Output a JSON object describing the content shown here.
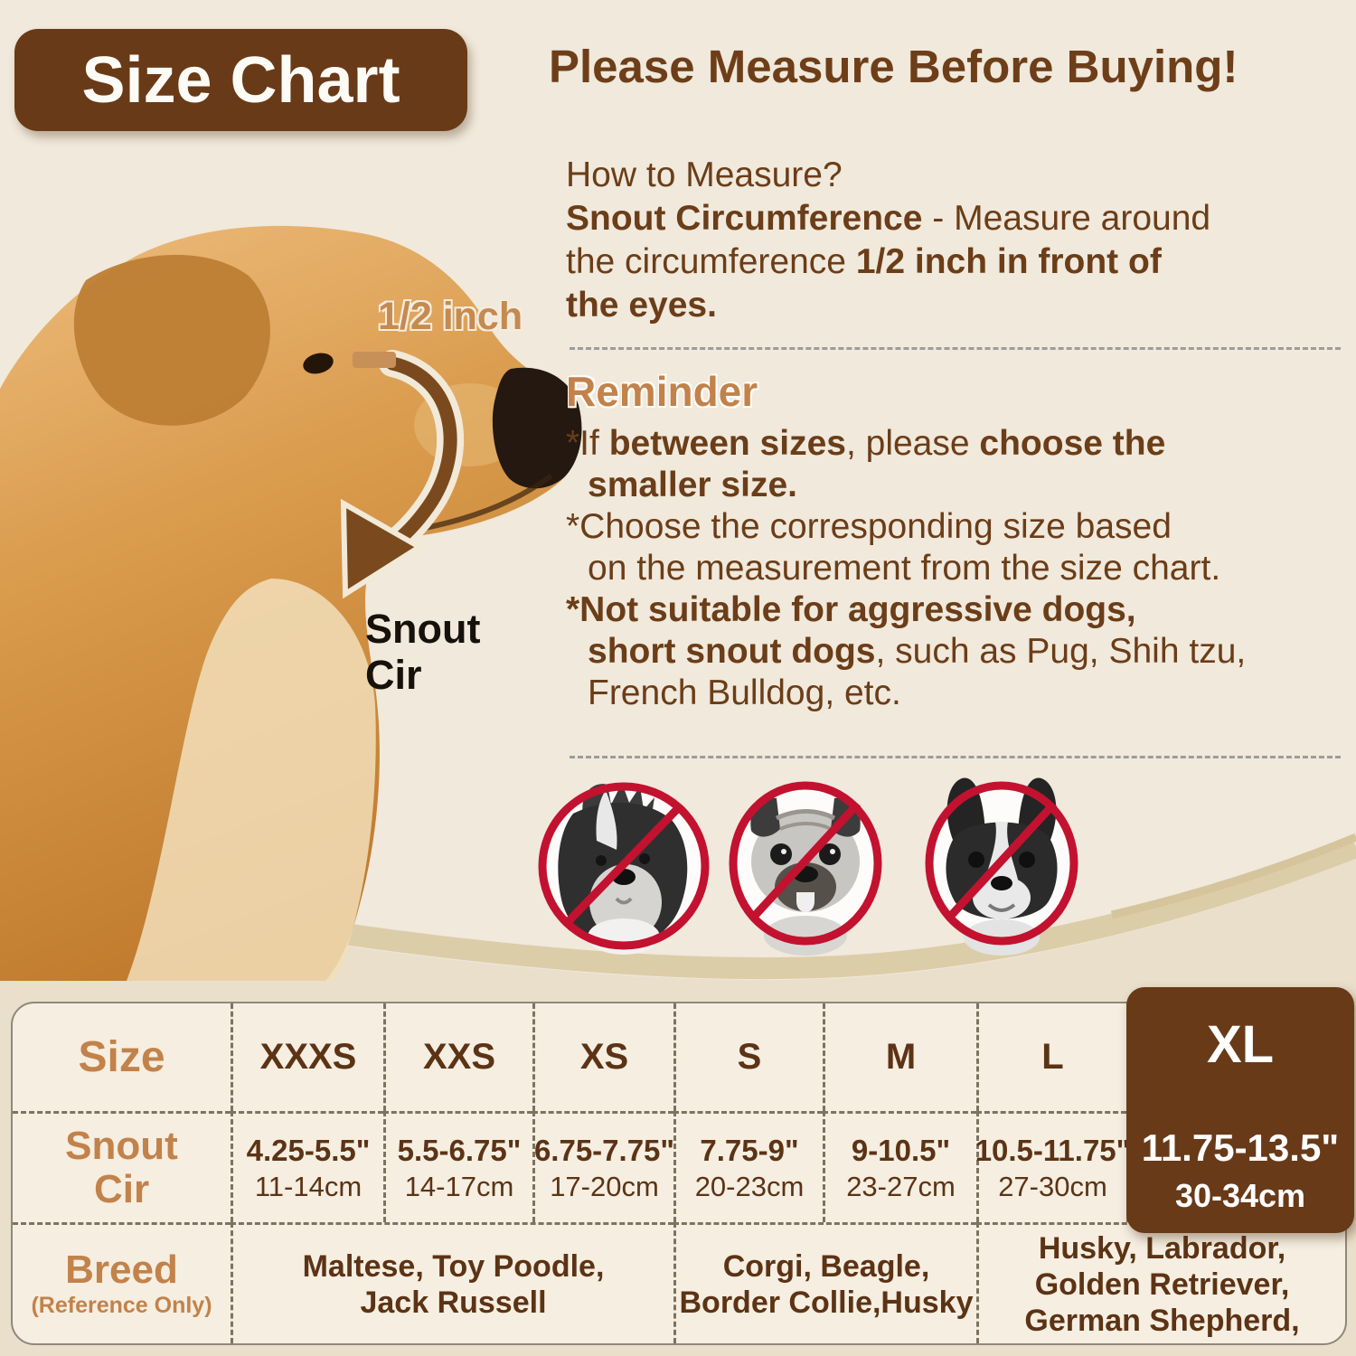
{
  "page": {
    "badge": "Size Chart",
    "title": "Please Measure Before Buying!"
  },
  "colors": {
    "dark_brown": "#693A17",
    "text_brown": "#6B3D18",
    "accent_tan": "#C2824A",
    "prohibit_red": "#C2122F",
    "table_bg": "#F5EEE1",
    "swoosh_band": "#DCCDA9"
  },
  "dog_figure": {
    "half_inch_label": "1/2 inch",
    "snout_cir_lines": [
      "Snout",
      "Cir"
    ],
    "icons": [
      "golden-retriever-photo",
      "measure-arrow-icon"
    ]
  },
  "how_to": {
    "heading": "How to Measure?",
    "lines": [
      {
        "segs": [
          [
            "Snout Circumference",
            1
          ],
          [
            " - Measure around",
            0
          ]
        ]
      },
      {
        "segs": [
          [
            "the circumference ",
            0
          ],
          [
            "1/2 inch in front of",
            1
          ]
        ]
      },
      {
        "segs": [
          [
            "the eyes.",
            1
          ]
        ]
      }
    ]
  },
  "reminder": {
    "heading": "Reminder",
    "lines": [
      {
        "segs": [
          [
            "*If ",
            0
          ],
          [
            "between sizes",
            1
          ],
          [
            ", please ",
            0
          ],
          [
            "choose the",
            1
          ]
        ]
      },
      {
        "indent": 1,
        "segs": [
          [
            "smaller size.",
            1
          ]
        ]
      },
      {
        "segs": [
          [
            "*Choose the corresponding size based",
            0
          ]
        ]
      },
      {
        "indent": 1,
        "segs": [
          [
            "on the measurement from the size chart.",
            0
          ]
        ]
      },
      {
        "segs": [
          [
            "*Not suitable for aggressive dogs,",
            1
          ]
        ]
      },
      {
        "indent": 1,
        "segs": [
          [
            "short snout dogs",
            1
          ],
          [
            ", such as Pug, Shih tzu,",
            0
          ]
        ]
      },
      {
        "indent": 1,
        "segs": [
          [
            "French Bulldog, etc.",
            0
          ]
        ]
      }
    ]
  },
  "prohibited": {
    "icons": [
      "no-shih-tzu-icon",
      "no-pug-icon",
      "no-french-bulldog-icon"
    ]
  },
  "size_table": {
    "row_labels": {
      "size": "Size",
      "snout_lines": [
        "Snout",
        "Cir"
      ],
      "breed": "Breed",
      "breed_sub": "(Reference Only)"
    },
    "columns": [
      {
        "label": "XXXS",
        "inch": "4.25-5.5\"",
        "cm": "11-14cm"
      },
      {
        "label": "XXS",
        "inch": "5.5-6.75\"",
        "cm": "14-17cm"
      },
      {
        "label": "XS",
        "inch": "6.75-7.75\"",
        "cm": "17-20cm"
      },
      {
        "label": "S",
        "inch": "7.75-9\"",
        "cm": "20-23cm"
      },
      {
        "label": "M",
        "inch": "9-10.5\"",
        "cm": "23-27cm"
      },
      {
        "label": "L",
        "inch": "10.5-11.75\"",
        "cm": "27-30cm"
      },
      {
        "label": "XL",
        "inch": "11.75-13.5\"",
        "cm": "30-34cm",
        "highlighted": true
      }
    ],
    "breed_cells": [
      {
        "lines": [
          "Maltese, Toy Poodle,",
          "Jack Russell"
        ]
      },
      {
        "lines": [
          "Corgi, Beagle,",
          "Border Collie,Husky"
        ]
      },
      {
        "lines": [
          "Husky, Labrador,",
          "Golden Retriever,",
          "German Shepherd,"
        ]
      }
    ]
  }
}
